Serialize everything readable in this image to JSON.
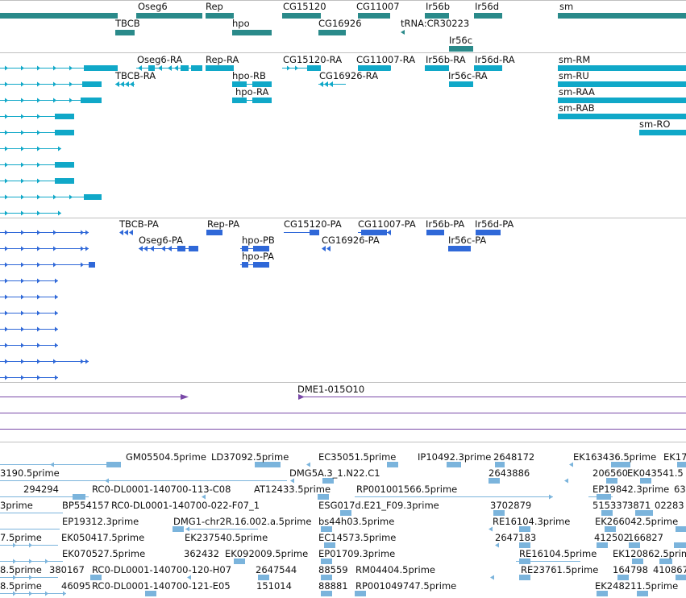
{
  "colors": {
    "gene": "#2a8a8a",
    "transcript": "#10a8c8",
    "protein": "#2f68d8",
    "clone": "#7a4aa8",
    "est": "#7bb4dc",
    "separator": "#bfbfbf"
  },
  "genes": {
    "labels": [
      "Oseg6",
      "Rep",
      "CG15120",
      "CG11007",
      "Ir56b",
      "Ir56d",
      "sm",
      "TBCB",
      "hpo",
      "CG16926",
      "tRNA:CR30223",
      "Ir56c"
    ]
  },
  "transcripts": {
    "labels": [
      "Oseg6-RA",
      "Rep-RA",
      "CG15120-RA",
      "CG11007-RA",
      "Ir56b-RA",
      "Ir56d-RA",
      "sm-RM",
      "TBCB-RA",
      "hpo-RB",
      "CG16926-RA",
      "Ir56c-RA",
      "sm-RU",
      "hpo-RA",
      "sm-RAA",
      "sm-RAB",
      "sm-RO"
    ]
  },
  "proteins": {
    "labels": [
      "TBCB-PA",
      "Rep-PA",
      "CG15120-PA",
      "CG11007-PA",
      "Ir56b-PA",
      "Ir56d-PA",
      "Oseg6-PA",
      "hpo-PB",
      "CG16926-PA",
      "Ir56c-PA",
      "hpo-PA"
    ]
  },
  "clones": {
    "labels": [
      "DME1-015O10"
    ]
  },
  "ests": {
    "labels": [
      "GM05504.5prime",
      "LD37092.5prime",
      "EC35051.5prime",
      "IP10492.3prime",
      "2648172",
      "EK163436.5prime",
      "EK17",
      "3190.5prime",
      "DMG5A.3_1.N22.C1",
      "2643886",
      "206560",
      "EK043541.5",
      "294294",
      "RC0-DL0001-140700-113-C08",
      "AT12433.5prime",
      "RP001001566.5prime",
      "EP19842.3prime",
      "63",
      "3prime",
      "BP554157",
      "RC0-DL0001-140700-022-F07_1",
      "ESG017d.E21_F09.3prime",
      "3702879",
      "515337",
      "3871",
      "02283",
      "EP19312.3prime",
      "DMG1-chr2R.16.002.a.5prime",
      "bs44h03.5prime",
      "RE16104.3prime",
      "EK266042.5prime",
      "7.5prime",
      "EK050417.5prime",
      "EK237540.5prime",
      "EC14573.5prime",
      "2647183",
      "412502",
      "166827",
      "EK070527.5prime",
      "362432",
      "EK092009.5prime",
      "EP01709.3prime",
      "RE16104.5prime",
      "EK120862.5prime",
      "8.5prime",
      "380167",
      "RC0-DL0001-140700-120-H07",
      "2647544",
      "88559",
      "RM04404.5prime",
      "RE23761.5prime",
      "164798",
      "410867",
      "8.5prime",
      "46095",
      "RC0-DL0001-140700-121-E05",
      "151014",
      "88881",
      "RP001049747.5prime",
      "EK248211.5prime"
    ]
  }
}
